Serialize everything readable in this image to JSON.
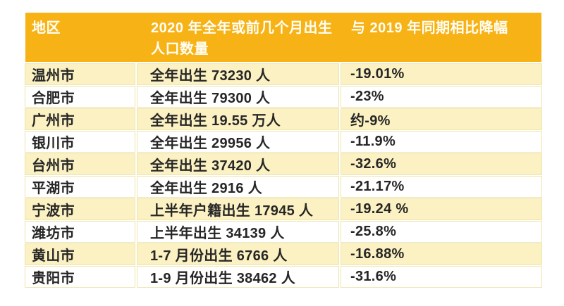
{
  "colors": {
    "header_bg": "#F7B216",
    "header_text": "#FFFEF6",
    "row_alt_bg": "#FBF1C2",
    "row_bg": "#FFFFFF",
    "grid_hairline": "#EFE5AE",
    "body_text": "#262626"
  },
  "table": {
    "headers": {
      "region": "地区",
      "births_full": "2020 年全年或前几个月出生人口数量",
      "births_lines": [
        "2020 年全年或前几个月出生",
        "人口数量"
      ],
      "decline": "与 2019 年同期相比降幅"
    },
    "rows": [
      {
        "region": "温州市",
        "births": "全年出生 73230 人",
        "decline": "-19.01%"
      },
      {
        "region": "合肥市",
        "births": "全年出生 79300 人",
        "decline": "-23%"
      },
      {
        "region": "广州市",
        "births": "全年出生 19.55 万人",
        "decline": "约-9%"
      },
      {
        "region": "银川市",
        "births": "全年出生 29956 人",
        "decline": "-11.9%"
      },
      {
        "region": "台州市",
        "births": "全年出生 37420 人",
        "decline": "-32.6%"
      },
      {
        "region": "平湖市",
        "births": "全年出生 2916 人",
        "decline": "-21.17%"
      },
      {
        "region": "宁波市",
        "births": "上半年户籍出生 17945 人",
        "decline": "-19.24 %"
      },
      {
        "region": "潍坊市",
        "births": "上半年出生 34139 人",
        "decline": "-25.8%"
      },
      {
        "region": "黄山市",
        "births": "1-7 月份出生 6766 人",
        "decline": "-16.88%"
      },
      {
        "region": "贵阳市",
        "births": "1-9 月份出生 38462 人",
        "decline": "-31.6%"
      }
    ]
  }
}
